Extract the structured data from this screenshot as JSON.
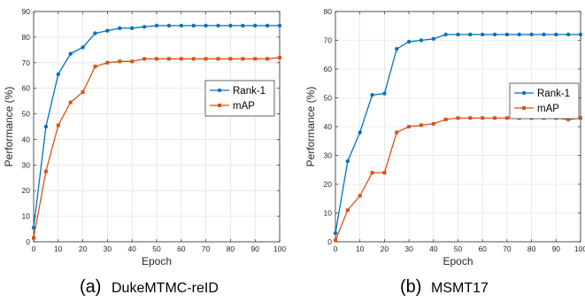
{
  "chart_data": [
    {
      "type": "line",
      "caption_letter": "(a)",
      "caption_name": "DukeMTMC-reID",
      "xlabel": "Epoch",
      "ylabel": "Performance (%)",
      "xlim": [
        0,
        100
      ],
      "ylim": [
        0,
        90
      ],
      "xticks": [
        0,
        10,
        20,
        30,
        40,
        50,
        60,
        70,
        80,
        90,
        100
      ],
      "yticks": [
        0,
        10,
        20,
        30,
        40,
        50,
        60,
        70,
        80,
        90
      ],
      "grid": true,
      "legend_position": "center-right",
      "x": [
        0,
        5,
        10,
        15,
        20,
        25,
        30,
        35,
        40,
        45,
        50,
        55,
        60,
        65,
        70,
        75,
        80,
        85,
        90,
        95,
        100
      ],
      "series": [
        {
          "name": "Rank-1",
          "color": "#0072BD",
          "marker": "circle",
          "values": [
            5.5,
            45,
            65.5,
            73.5,
            76,
            81.5,
            82.5,
            83.5,
            83.5,
            84,
            84.5,
            84.5,
            84.5,
            84.5,
            84.5,
            84.5,
            84.5,
            84.5,
            84.5,
            84.5,
            84.5
          ]
        },
        {
          "name": "mAP",
          "color": "#D95319",
          "marker": "square",
          "values": [
            1.5,
            27.5,
            45.5,
            54.5,
            58.5,
            68.5,
            70,
            70.5,
            70.5,
            71.5,
            71.5,
            71.5,
            71.5,
            71.5,
            71.5,
            71.5,
            71.5,
            71.5,
            71.5,
            71.5,
            72
          ]
        }
      ]
    },
    {
      "type": "line",
      "caption_letter": "(b)",
      "caption_name": "MSMT17",
      "xlabel": "Epoch",
      "ylabel": "Performance (%)",
      "xlim": [
        0,
        100
      ],
      "ylim": [
        0,
        80
      ],
      "xticks": [
        0,
        10,
        20,
        30,
        40,
        50,
        60,
        70,
        80,
        90,
        100
      ],
      "yticks": [
        0,
        10,
        20,
        30,
        40,
        50,
        60,
        70,
        80
      ],
      "grid": true,
      "legend_position": "center-right",
      "x": [
        0,
        5,
        10,
        15,
        20,
        25,
        30,
        35,
        40,
        45,
        50,
        55,
        60,
        65,
        70,
        75,
        80,
        85,
        90,
        95,
        100
      ],
      "series": [
        {
          "name": "Rank-1",
          "color": "#0072BD",
          "marker": "circle",
          "values": [
            3,
            28,
            38,
            51,
            51.5,
            67,
            69.5,
            70,
            70.5,
            72,
            72,
            72,
            72,
            72,
            72,
            72,
            72,
            72,
            72,
            72,
            72
          ]
        },
        {
          "name": "mAP",
          "color": "#D95319",
          "marker": "square",
          "values": [
            0.5,
            11,
            16,
            24,
            24,
            38,
            40,
            40.5,
            41,
            42.5,
            43,
            43,
            43,
            43,
            43,
            43,
            43,
            43,
            43,
            42.5,
            43
          ]
        }
      ]
    }
  ]
}
